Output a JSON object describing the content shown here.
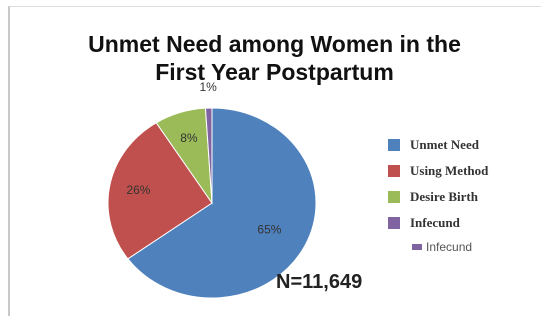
{
  "chart_data": {
    "type": "pie",
    "title": "Unmet Need among Women in the First Year Postpartum",
    "title_lines": [
      "Unmet Need among Women in the",
      "First Year Postpartum"
    ],
    "categories": [
      "Unmet Need",
      "Using Method",
      "Desire Birth",
      "Infecund"
    ],
    "values": [
      65,
      26,
      8,
      1
    ],
    "data_labels": [
      "65%",
      "26%",
      "8%",
      "1%"
    ],
    "colors": [
      "#4f81bd",
      "#c0504d",
      "#9bbb59",
      "#8064a2"
    ],
    "legend_position": "right",
    "annotation": "N=11,649",
    "extra_legend_label": "Infecund"
  }
}
